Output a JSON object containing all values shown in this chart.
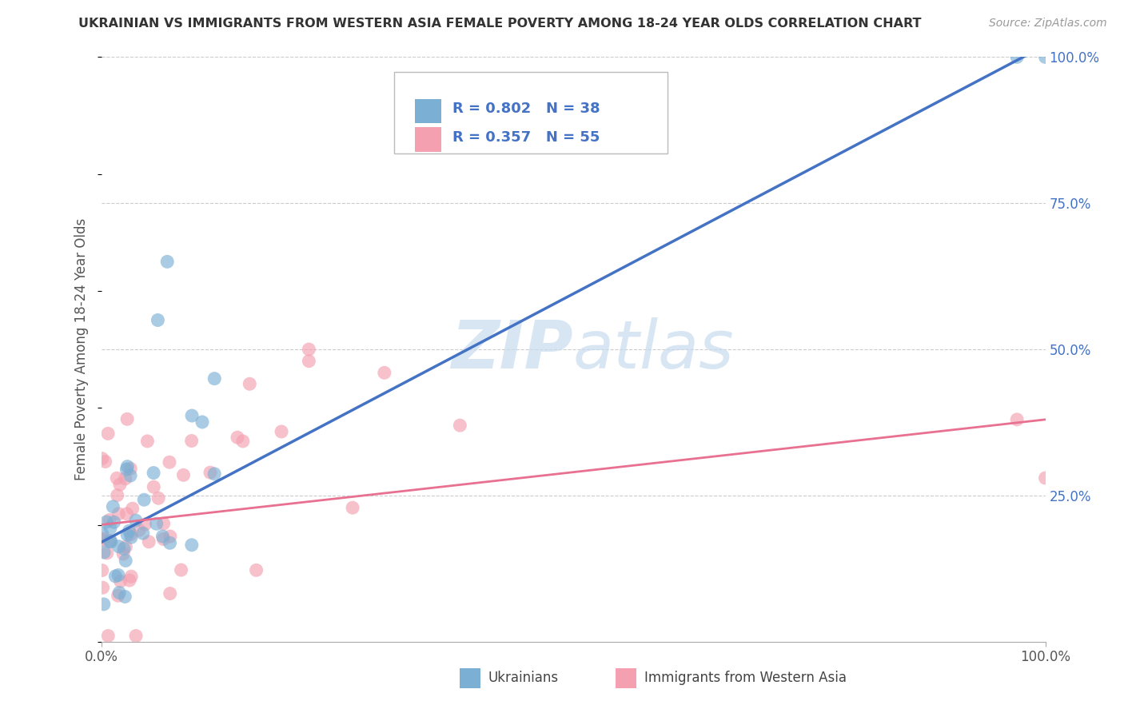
{
  "title": "UKRAINIAN VS IMMIGRANTS FROM WESTERN ASIA FEMALE POVERTY AMONG 18-24 YEAR OLDS CORRELATION CHART",
  "source": "Source: ZipAtlas.com",
  "ylabel": "Female Poverty Among 18-24 Year Olds",
  "xlim": [
    0,
    1.0
  ],
  "ylim": [
    0,
    1.0
  ],
  "blue_color": "#7BAFD4",
  "pink_color": "#F4A0B0",
  "line_blue": "#4472C4",
  "line_pink": "#E87090",
  "bg_color": "#FFFFFF",
  "grid_color": "#CCCCCC",
  "ytick_color": "#4472C4",
  "watermark_color": "#D8E8F0",
  "legend_blue_text": "R = 0.802   N = 38",
  "legend_pink_text": "R = 0.357   N = 55"
}
